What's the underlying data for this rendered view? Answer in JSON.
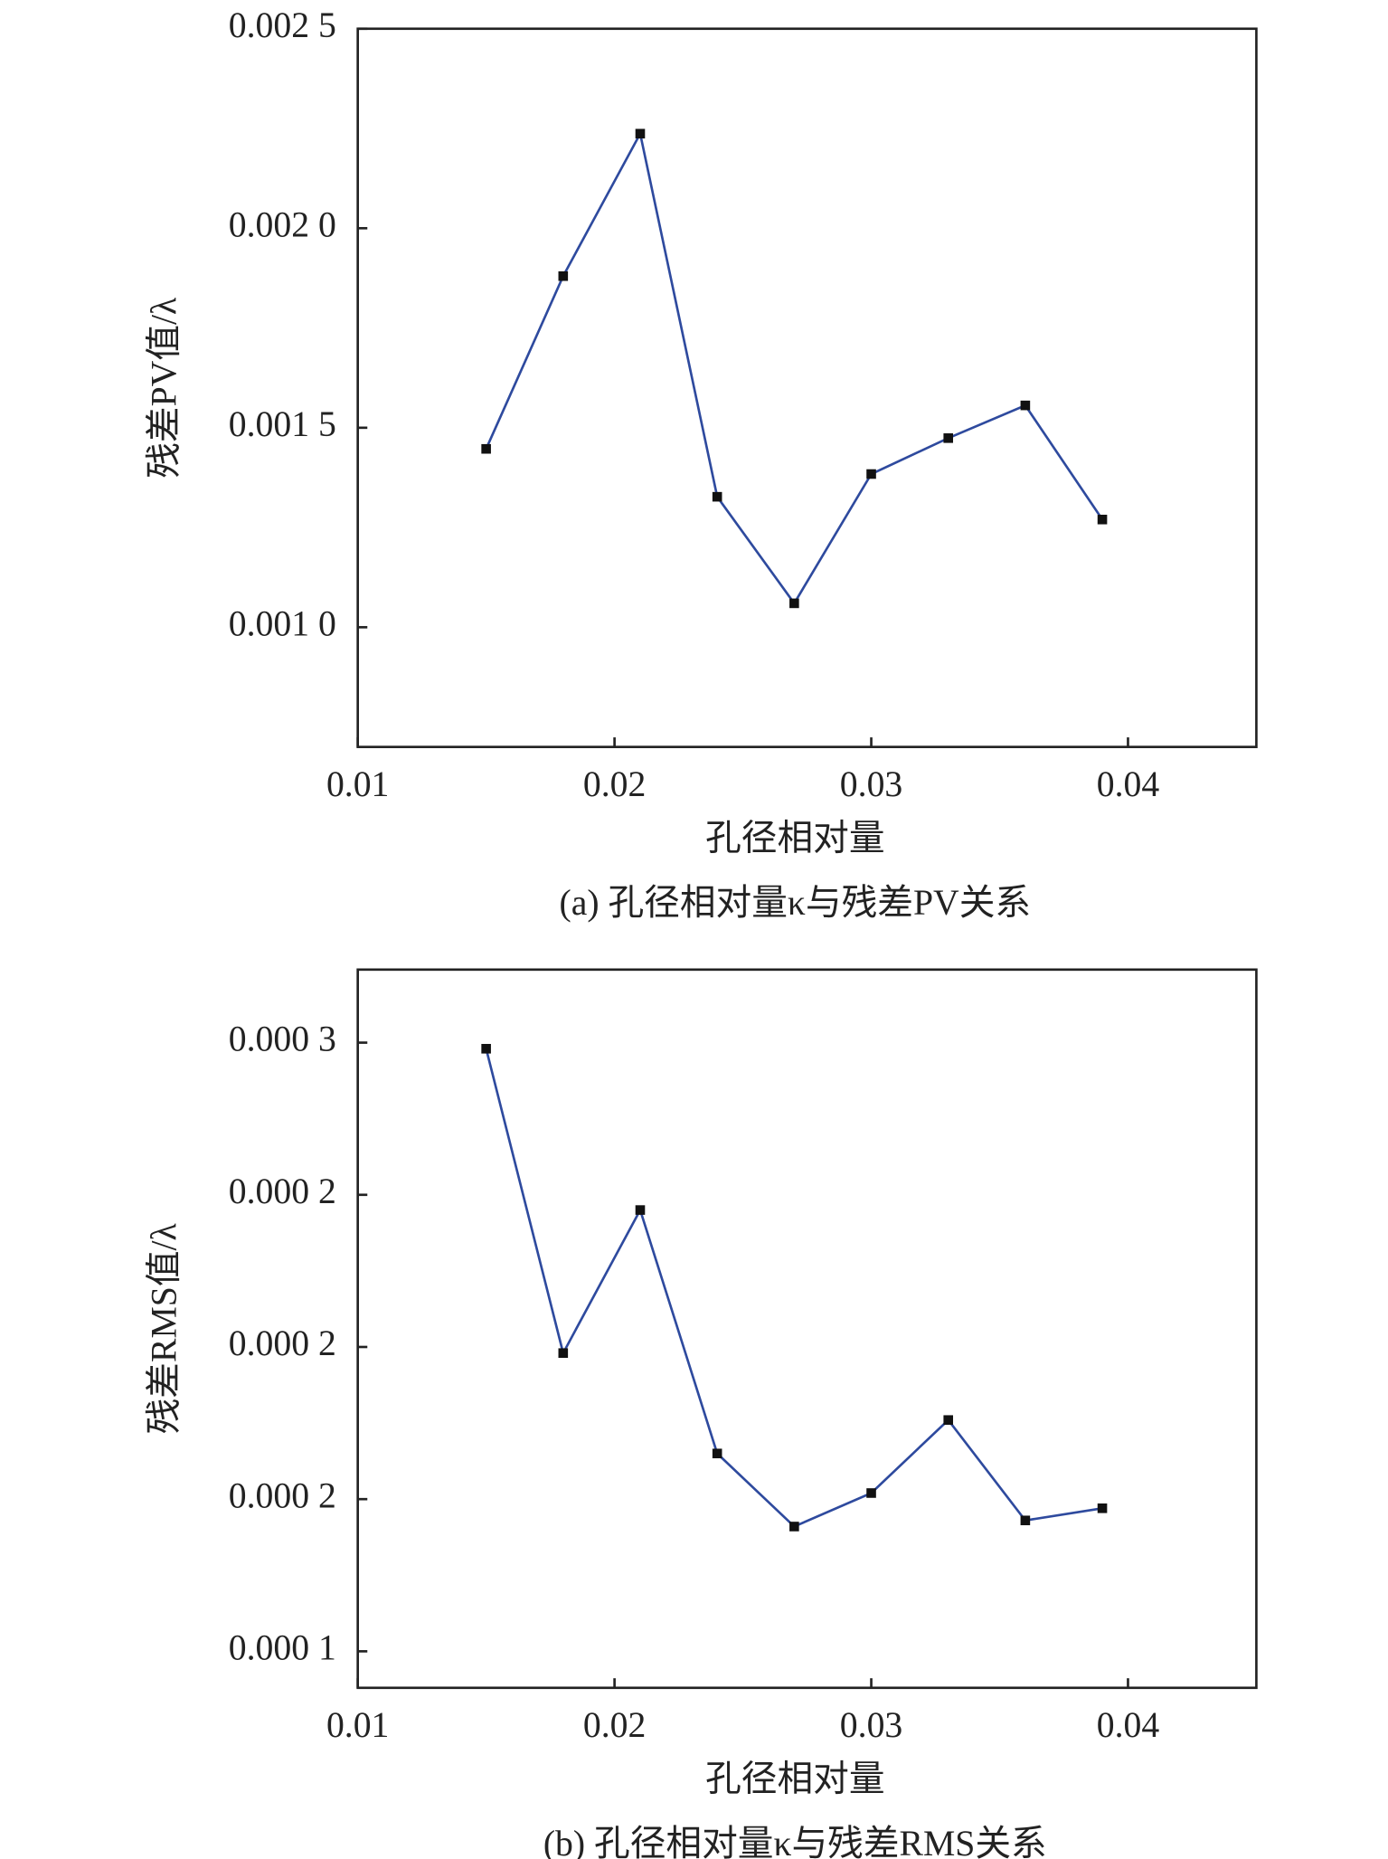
{
  "chart_data": [
    {
      "type": "line",
      "title": "(a) 孔径相对量κ与残差PV关系",
      "x_label": "孔径相对量",
      "y_label": "残差PV值/λ",
      "x": [
        0.015,
        0.018,
        0.021,
        0.024,
        0.027,
        0.03,
        0.033,
        0.036,
        0.039
      ],
      "values": [
        0.001447,
        0.00188,
        0.002237,
        0.001327,
        0.00106,
        0.001384,
        0.001474,
        0.001556,
        0.00127
      ],
      "color": "#2e4a9e",
      "marker_color": "#111111",
      "xlim": [
        0.01,
        0.045
      ],
      "xticks": [
        0.01,
        0.02,
        0.03,
        0.04
      ],
      "ylim": [
        0.0007,
        0.0025
      ],
      "yticks": [
        {
          "value": 0.001,
          "label": "0.001 0"
        },
        {
          "value": 0.0015,
          "label": "0.001 5"
        },
        {
          "value": 0.002,
          "label": "0.002 0"
        },
        {
          "value": 0.0025,
          "label": "0.002 5"
        }
      ]
    },
    {
      "type": "line",
      "title": "(b) 孔径相对量κ与残差RMS关系",
      "x_label": "孔径相对量",
      "y_label": "残差RMS值/λ",
      "x": [
        0.015,
        0.018,
        0.021,
        0.024,
        0.027,
        0.03,
        0.033,
        0.036,
        0.039
      ],
      "values": [
        0.000298,
        0.000198,
        0.000245,
        0.000165,
        0.000141,
        0.000152,
        0.000176,
        0.000143,
        0.000147
      ],
      "color": "#2e4a9e",
      "marker_color": "#111111",
      "xlim": [
        0.01,
        0.045
      ],
      "xticks": [
        0.01,
        0.02,
        0.03,
        0.04
      ],
      "ylim": [
        8.8e-05,
        0.000324
      ],
      "yticks": [
        {
          "value": 0.0001,
          "label": "0.000 1"
        },
        {
          "value": 0.00015,
          "label": "0.000 2"
        },
        {
          "value": 0.0002,
          "label": "0.000 2"
        },
        {
          "value": 0.00025,
          "label": "0.000 2"
        },
        {
          "value": 0.0003,
          "label": "0.000 3"
        }
      ]
    }
  ]
}
